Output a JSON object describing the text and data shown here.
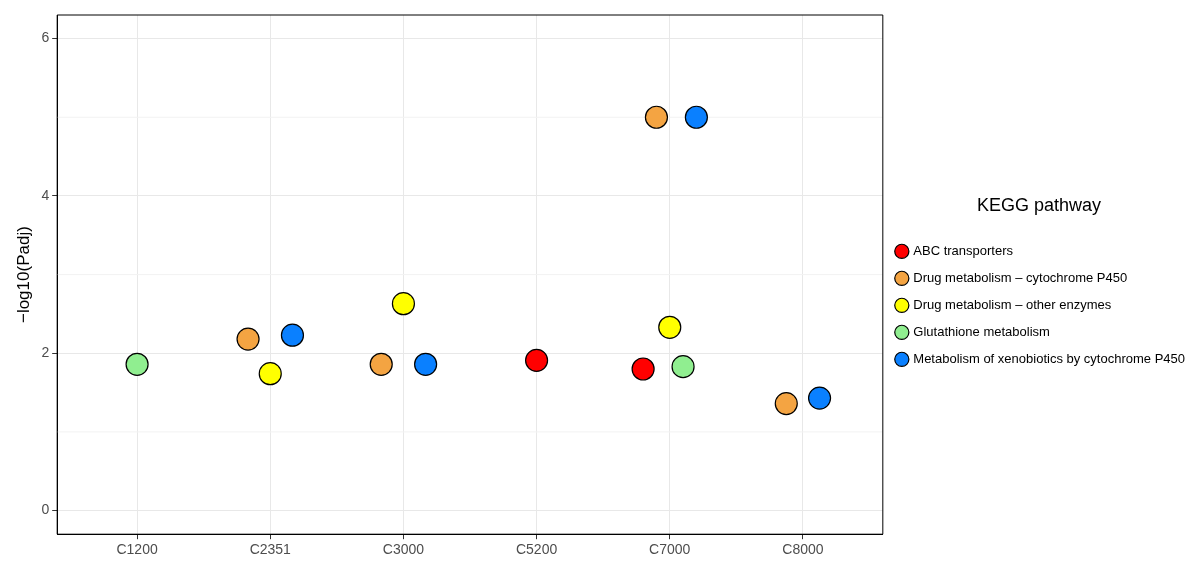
{
  "chart_data": {
    "type": "scatter",
    "ylabel": "−log10(Padj)",
    "legend_title": "KEGG pathway",
    "categories": [
      "C1200",
      "C2351",
      "C3000",
      "C5200",
      "C7000",
      "C8000"
    ],
    "series": [
      {
        "name": "ABC transporters",
        "color": "#ff0000",
        "values": [
          null,
          null,
          null,
          1.91,
          1.8,
          null
        ]
      },
      {
        "name": "Drug metabolism – cytochrome P450",
        "color": "#f4a442",
        "values": [
          null,
          2.18,
          1.86,
          null,
          5.0,
          1.36
        ]
      },
      {
        "name": "Drug metabolism – other enzymes",
        "color": "#ffff00",
        "values": [
          null,
          1.74,
          2.63,
          null,
          2.33,
          null
        ]
      },
      {
        "name": "Glutathione metabolism",
        "color": "#90ee90",
        "values": [
          1.86,
          null,
          null,
          null,
          1.83,
          null
        ]
      },
      {
        "name": "Metabolism of xenobiotics by cytochrome P450",
        "color": "#0a80ff",
        "values": [
          null,
          2.23,
          1.86,
          null,
          5.0,
          1.43
        ]
      }
    ],
    "ylim": [
      -0.3,
      6.3
    ],
    "yticks": [
      0,
      2,
      4,
      6
    ],
    "grid": true,
    "legend": "right",
    "marker": "circle"
  }
}
